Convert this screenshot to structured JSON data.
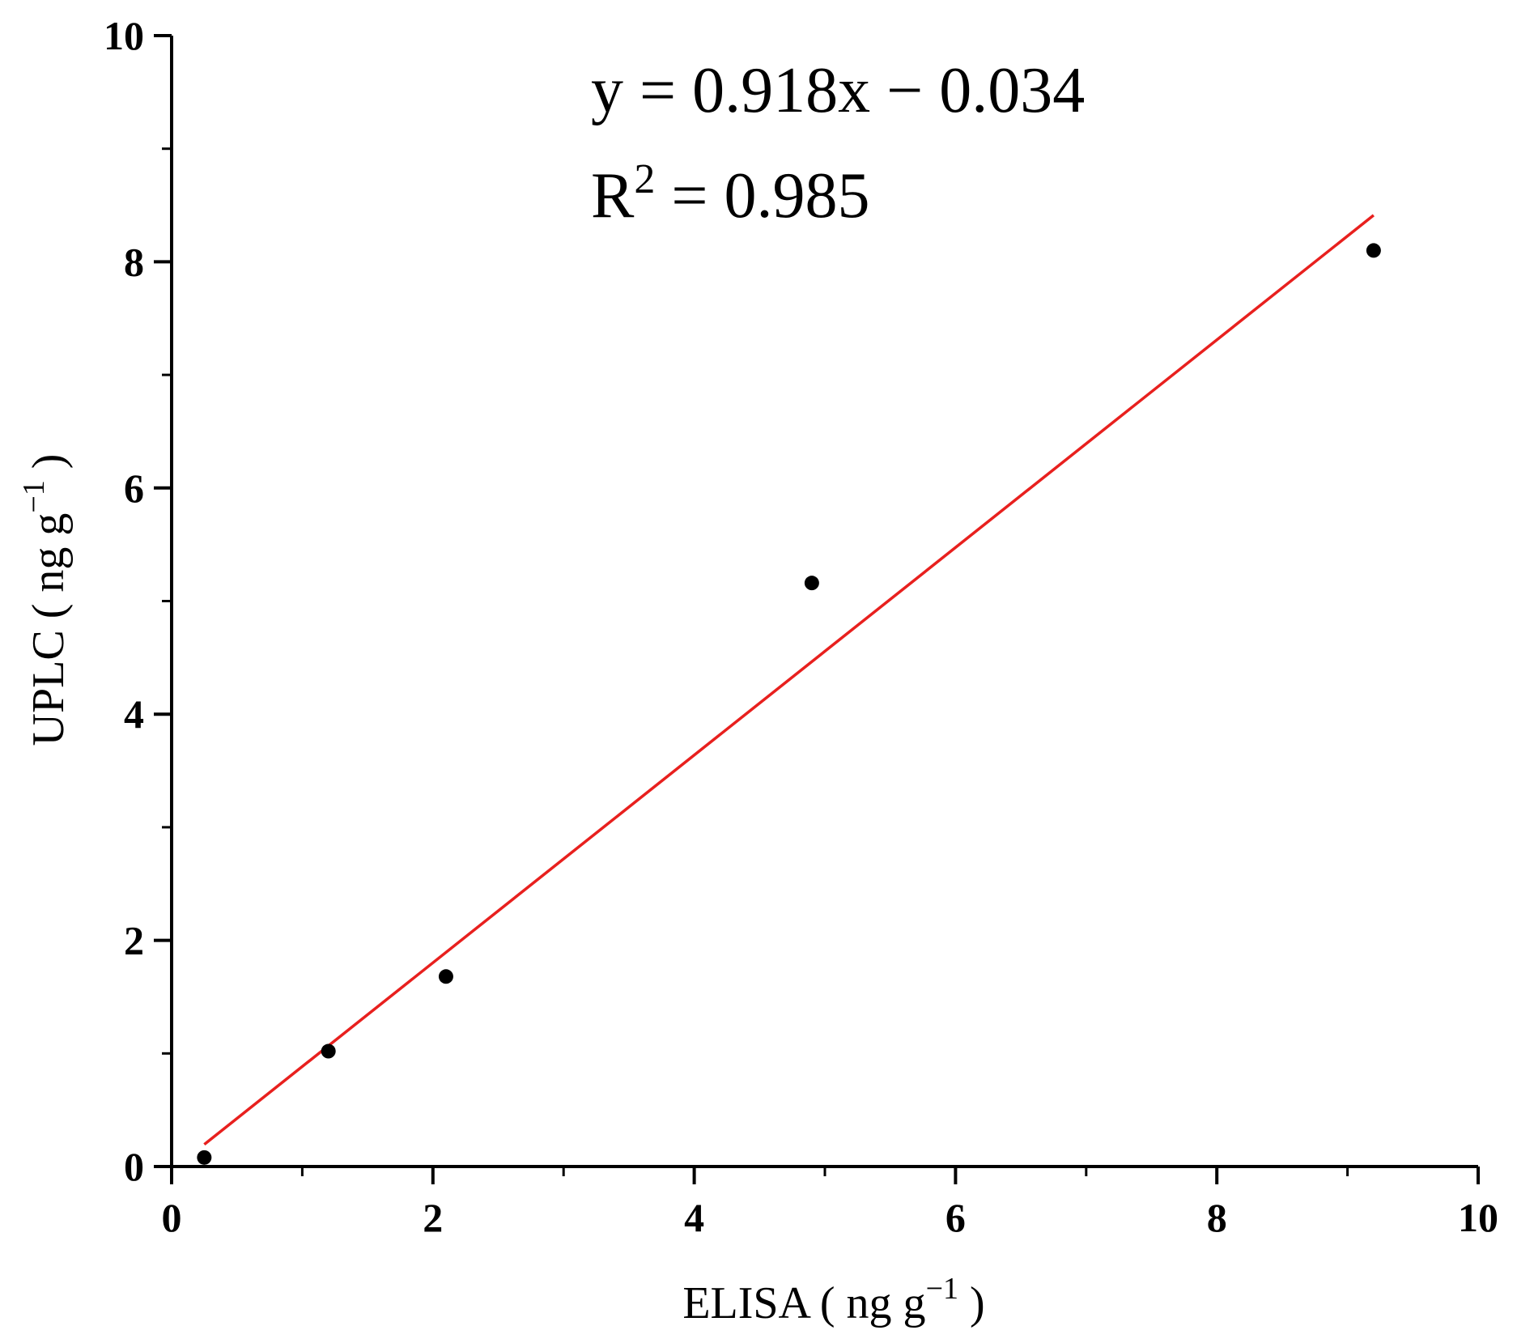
{
  "chart_data": {
    "type": "scatter",
    "xlabel": "ELISA ( ng g",
    "xlabel_sup": "−1",
    "xlabel_tail": " )",
    "ylabel": "UPLC ( ng g",
    "ylabel_sup": "−1",
    "ylabel_tail": " )",
    "xlim": [
      0,
      10
    ],
    "ylim": [
      0,
      10
    ],
    "xticks": [
      0,
      2,
      4,
      6,
      8,
      10
    ],
    "yticks": [
      0,
      2,
      4,
      6,
      8,
      10
    ],
    "minor_step": 1,
    "grid": false,
    "series": [
      {
        "points": [
          {
            "x": 0.25,
            "y": 0.08
          },
          {
            "x": 1.2,
            "y": 1.02
          },
          {
            "x": 2.1,
            "y": 1.68
          },
          {
            "x": 4.9,
            "y": 5.16
          },
          {
            "x": 9.2,
            "y": 8.1
          }
        ],
        "color": "#000000"
      }
    ],
    "fit_line": {
      "slope": 0.918,
      "intercept": -0.034,
      "x_range": [
        0.25,
        9.2
      ],
      "color": "#e8201e"
    },
    "annotations": {
      "equation": "y = 0.918x − 0.034",
      "r2_prefix": "R",
      "r2_sup": "2",
      "r2_suffix": " = 0.985"
    }
  }
}
